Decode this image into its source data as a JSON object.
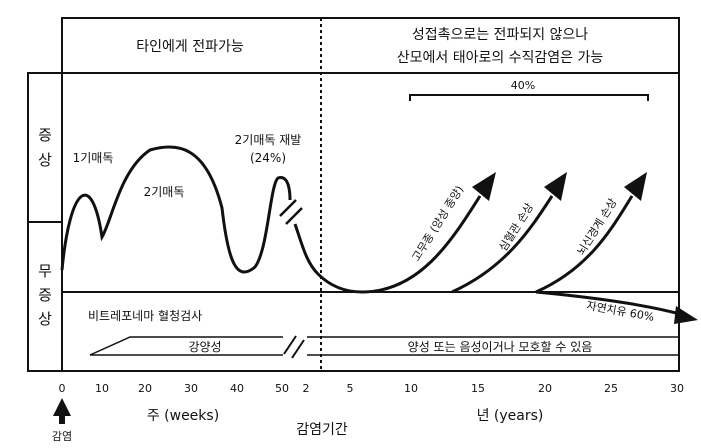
{
  "header": {
    "left": "타인에게 전파가능",
    "right_line1": "성접촉으로는 전파되지 않으나",
    "right_line2": "산모에서 태아로의 수직감염은 가능"
  },
  "side": {
    "symptomatic": [
      "증",
      "상"
    ],
    "asymptomatic": [
      "무",
      "증",
      "상"
    ]
  },
  "stages": {
    "primary": "1기매독",
    "secondary": "2기매독",
    "relapse": "2기매독 재발",
    "relapse_pct": "(24%)"
  },
  "late": {
    "bracket_pct": "40%",
    "gumma": "고무종 (양성 종양)",
    "cardio": "심혈관 손상",
    "neuro": "뇌신경계 손상",
    "natural": "자연치유 60%"
  },
  "test": {
    "title": "비트레포네마 혈청검사",
    "positive": "강양성",
    "variable": "양성 또는 음성이거나 모호할 수 있음"
  },
  "axis": {
    "weeks_ticks": [
      "0",
      "10",
      "20",
      "30",
      "40",
      "50"
    ],
    "years_ticks": [
      "2",
      "5",
      "10",
      "15",
      "20",
      "25",
      "30"
    ],
    "weeks_label": "주 (weeks)",
    "years_label": "년 (years)",
    "infection": "감염",
    "incubation": "감염기간"
  }
}
